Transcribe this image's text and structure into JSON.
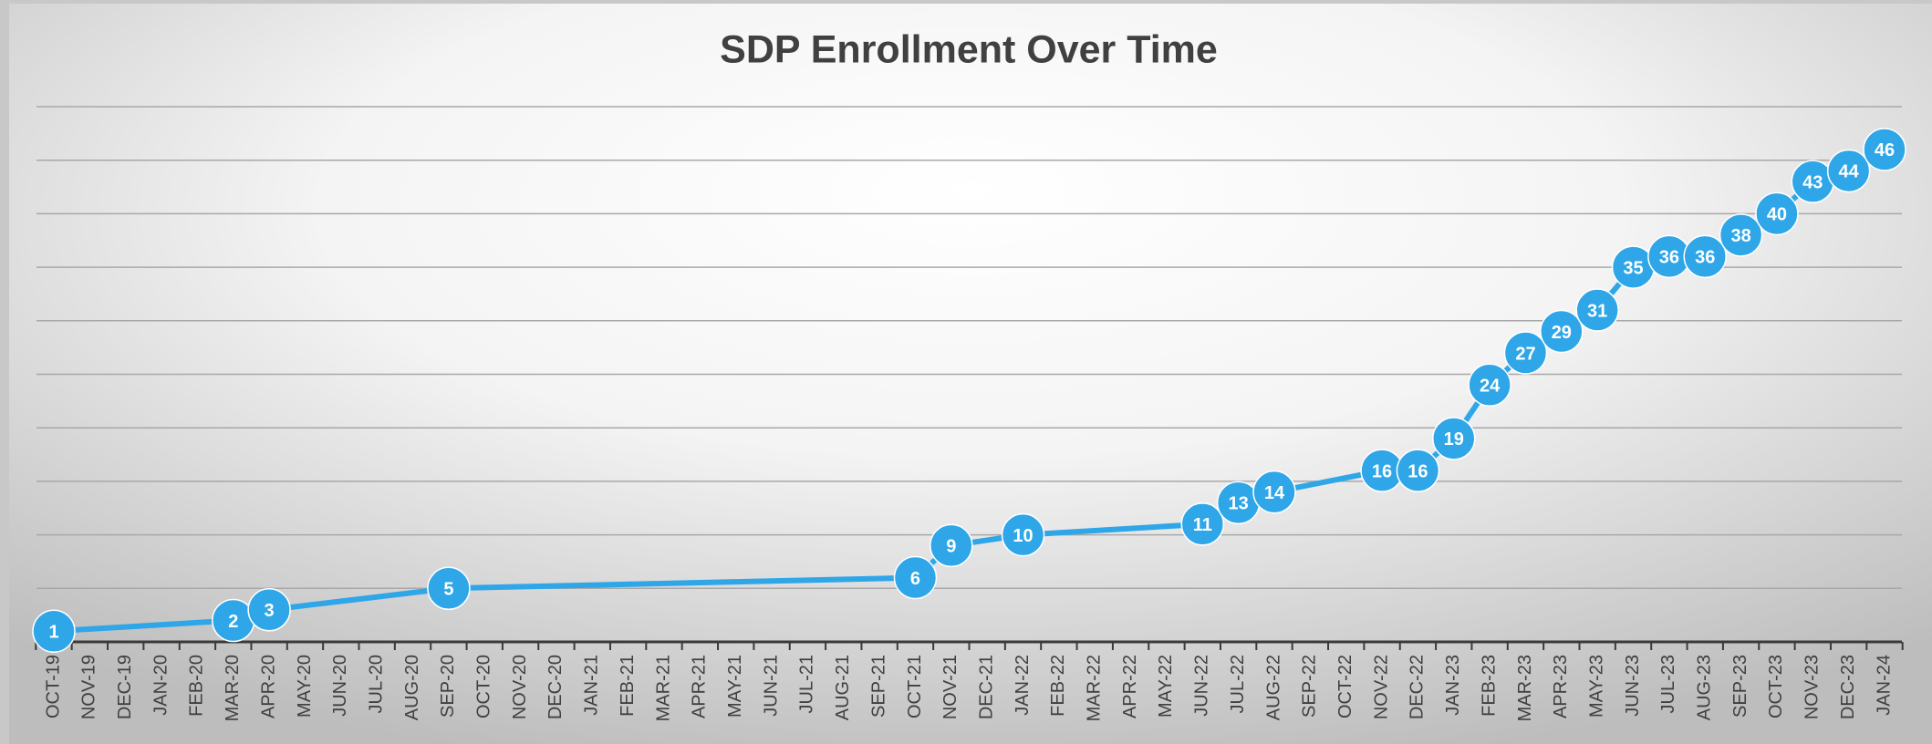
{
  "chart_data": {
    "type": "line",
    "title": "SDP Enrollment Over Time",
    "xticks": [
      "OCT-19",
      "NOV-19",
      "DEC-19",
      "JAN-20",
      "FEB-20",
      "MAR-20",
      "APR-20",
      "MAY-20",
      "JUN-20",
      "JUL-20",
      "AUG-20",
      "SEP-20",
      "OCT-20",
      "NOV-20",
      "DEC-20",
      "JAN-21",
      "FEB-21",
      "MAR-21",
      "APR-21",
      "MAY-21",
      "JUN-21",
      "JUL-21",
      "AUG-21",
      "SEP-21",
      "OCT-21",
      "NOV-21",
      "DEC-21",
      "JAN-22",
      "FEB-22",
      "MAR-22",
      "APR-22",
      "MAY-22",
      "JUN-22",
      "JUL-22",
      "AUG-22",
      "SEP-22",
      "OCT-22",
      "NOV-22",
      "DEC-22",
      "JAN-23",
      "FEB-23",
      "MAR-23",
      "APR-23",
      "MAY-23",
      "JUN-23",
      "JUL-23",
      "AUG-23",
      "SEP-23",
      "OCT-23",
      "NOV-23",
      "DEC-23",
      "JAN-24"
    ],
    "x": [
      "OCT-19",
      "MAR-20",
      "APR-20",
      "SEP-20",
      "OCT-21",
      "NOV-21",
      "JAN-22",
      "JUN-22",
      "JUL-22",
      "AUG-22",
      "NOV-22",
      "DEC-22",
      "JAN-23",
      "FEB-23",
      "MAR-23",
      "APR-23",
      "MAY-23",
      "JUN-23",
      "JUL-23",
      "AUG-23",
      "SEP-23",
      "OCT-23",
      "NOV-23",
      "DEC-23",
      "JAN-24"
    ],
    "values": [
      1,
      2,
      3,
      5,
      6,
      9,
      10,
      11,
      13,
      14,
      16,
      16,
      19,
      24,
      27,
      29,
      31,
      35,
      36,
      36,
      38,
      40,
      43,
      44,
      46
    ],
    "color": "#2ea6e8",
    "ylim": [
      0,
      50
    ],
    "yticks": [
      0,
      5,
      10,
      15,
      20,
      25,
      30,
      35,
      40,
      45,
      50
    ],
    "grid": true
  }
}
